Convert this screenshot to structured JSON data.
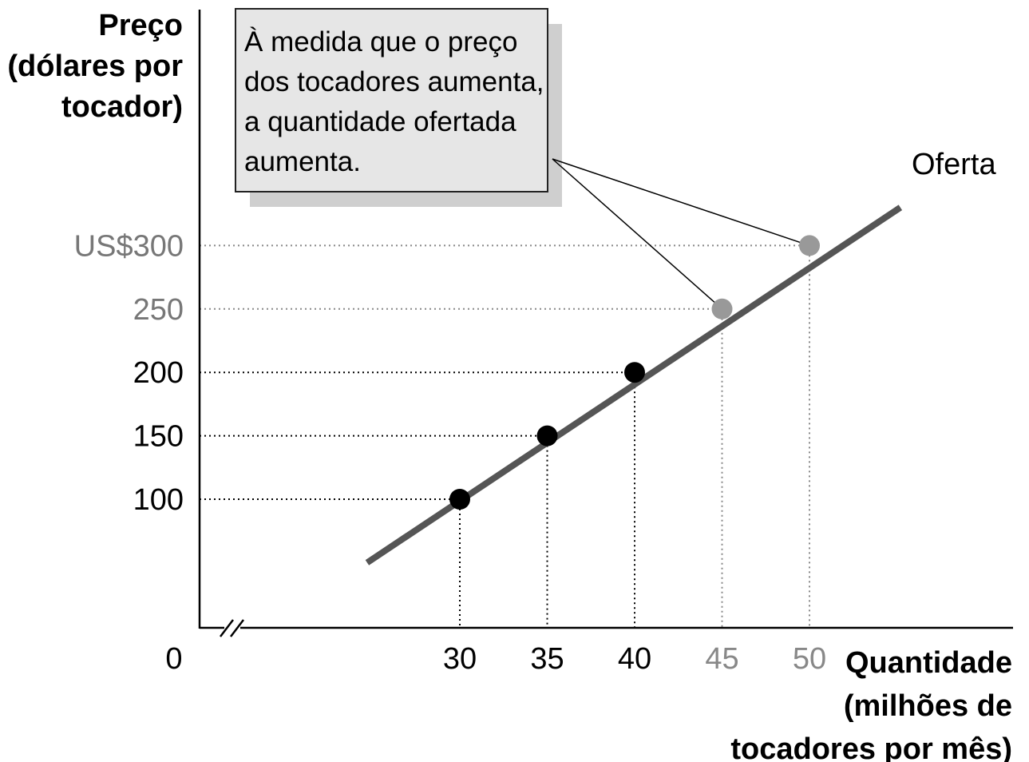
{
  "chart_data": {
    "type": "line",
    "y_axis_title": [
      "Preço",
      "(dólares por",
      "tocador)"
    ],
    "x_axis_title": [
      "Quantidade",
      "(milhões de",
      "tocadores por mês)"
    ],
    "origin_label": "0",
    "y_ticks": [
      {
        "value": 100,
        "label": "100",
        "color": "#000000"
      },
      {
        "value": 150,
        "label": "150",
        "color": "#000000"
      },
      {
        "value": 200,
        "label": "200",
        "color": "#000000"
      },
      {
        "value": 250,
        "label": "250",
        "color": "#777777"
      },
      {
        "value": 300,
        "label": "US$300",
        "color": "#777777"
      }
    ],
    "x_ticks": [
      {
        "value": 30,
        "label": "30",
        "color": "#000000"
      },
      {
        "value": 35,
        "label": "35",
        "color": "#000000"
      },
      {
        "value": 40,
        "label": "40",
        "color": "#000000"
      },
      {
        "value": 45,
        "label": "45",
        "color": "#888888"
      },
      {
        "value": 50,
        "label": "50",
        "color": "#888888"
      }
    ],
    "series": [
      {
        "name": "Oferta",
        "color": "#555555",
        "line_x": [
          24.7,
          55.2
        ],
        "line_y": [
          50,
          330
        ],
        "points": [
          {
            "x": 30,
            "y": 100,
            "color": "#000000"
          },
          {
            "x": 35,
            "y": 150,
            "color": "#000000"
          },
          {
            "x": 40,
            "y": 200,
            "color": "#000000"
          },
          {
            "x": 45,
            "y": 250,
            "color": "#999999"
          },
          {
            "x": 50,
            "y": 300,
            "color": "#999999"
          }
        ]
      }
    ],
    "annotation": {
      "lines": [
        "À medida que o preço",
        "dos tocadores aumenta,",
        "a quantidade ofertada",
        "aumenta."
      ],
      "points_to": [
        {
          "x": 45,
          "y": 250
        },
        {
          "x": 50,
          "y": 300
        }
      ],
      "fill": "#e6e6e6",
      "shadow": "#cfcfcf"
    },
    "x_axis_break": true,
    "grid": false,
    "guide_lines": "dotted"
  }
}
